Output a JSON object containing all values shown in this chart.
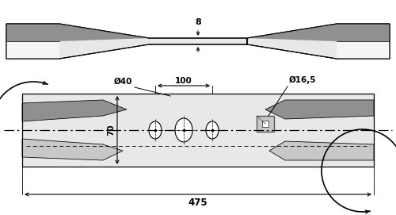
{
  "bg_color": "#ffffff",
  "blade_light": "#e8e8e8",
  "blade_mid": "#c8c8c8",
  "blade_dark": "#909090",
  "blade_white": "#f5f5f5",
  "line_color": "#000000",
  "dim_40": "Ø40",
  "dim_100": "100",
  "dim_165": "Ø16,5",
  "dim_70": "70",
  "dim_8": "8",
  "dim_475": "475"
}
